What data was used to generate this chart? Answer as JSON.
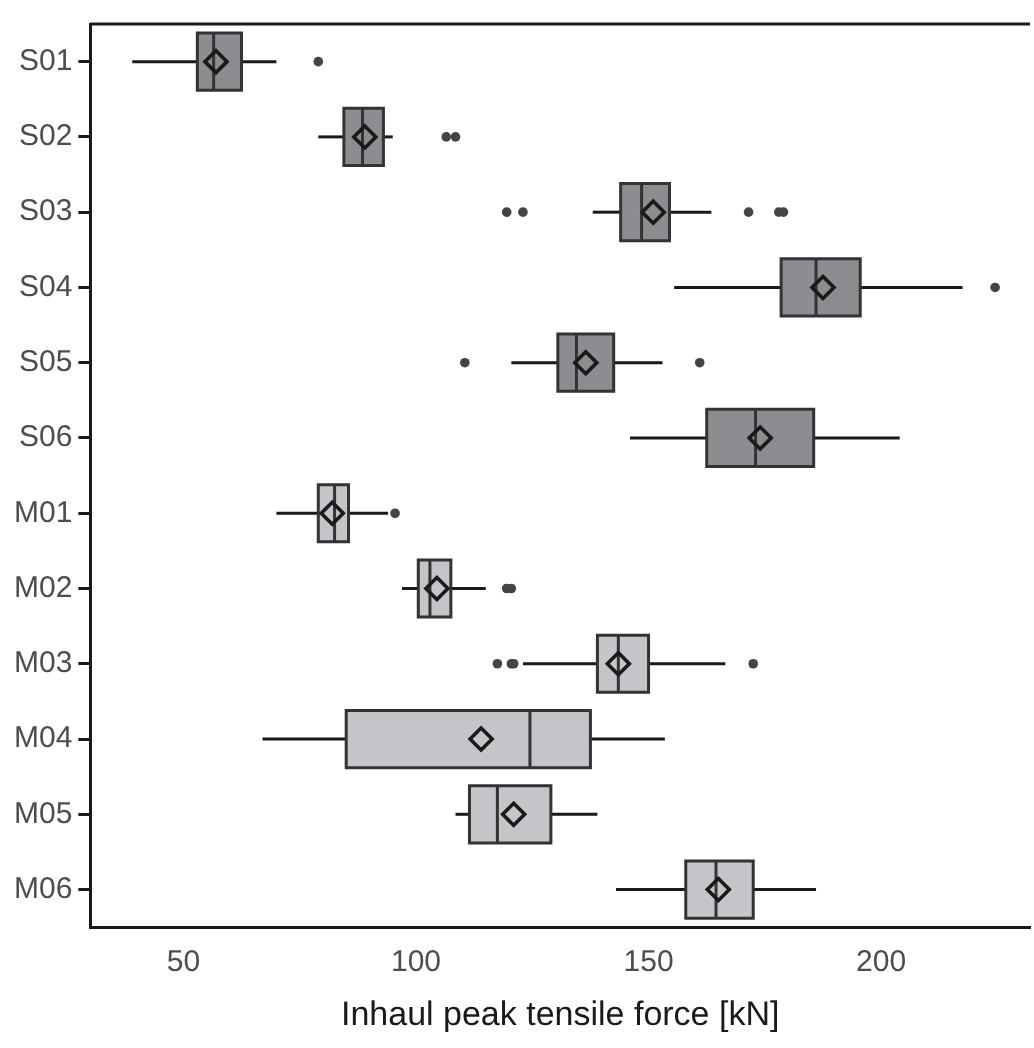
{
  "chart_data": {
    "type": "box",
    "orientation": "horizontal",
    "xlabel": "Inhaul peak tensile force [kN]",
    "categories": [
      "S01",
      "S02",
      "S03",
      "S04",
      "S05",
      "S06",
      "M01",
      "M02",
      "M03",
      "M04",
      "M05",
      "M06"
    ],
    "colors": [
      "#8c8d90",
      "#8c8d90",
      "#8c8d90",
      "#8c8d90",
      "#8c8d90",
      "#8c8d90",
      "#c4c5c8",
      "#c4c5c8",
      "#c4c5c8",
      "#c4c5c8",
      "#c4c5c8",
      "#c4c5c8"
    ],
    "boxes": [
      {
        "low": 39,
        "q1": 53,
        "median": 56.5,
        "q3": 62.5,
        "high": 70,
        "mean": 57,
        "outliers": [
          79
        ]
      },
      {
        "low": 79,
        "q1": 84.5,
        "median": 88.5,
        "q3": 93,
        "high": 95,
        "mean": 89,
        "outliers": [
          106.5,
          108.5
        ]
      },
      {
        "low": 138,
        "q1": 144,
        "median": 148.5,
        "q3": 154.5,
        "high": 163.5,
        "mean": 151,
        "outliers": [
          119.5,
          123,
          171.5,
          178,
          179
        ]
      },
      {
        "low": 155.5,
        "q1": 178.5,
        "median": 186,
        "q3": 195.5,
        "high": 217.5,
        "mean": 187.5,
        "outliers": [
          224.5
        ]
      },
      {
        "low": 120.5,
        "q1": 130.5,
        "median": 134.5,
        "q3": 142.5,
        "high": 153,
        "mean": 136.5,
        "outliers": [
          110.5,
          161
        ]
      },
      {
        "low": 146,
        "q1": 162.5,
        "median": 173,
        "q3": 185.5,
        "high": 204,
        "mean": 174
      },
      {
        "low": 70,
        "q1": 79,
        "median": 82.5,
        "q3": 85.5,
        "high": 94,
        "mean": 82,
        "outliers": [
          95.5
        ]
      },
      {
        "low": 97,
        "q1": 100.5,
        "median": 103,
        "q3": 107.5,
        "high": 115,
        "mean": 104.5,
        "outliers": [
          119.5,
          120.5
        ]
      },
      {
        "low": 123,
        "q1": 139,
        "median": 143.5,
        "q3": 150,
        "high": 166.5,
        "mean": 143.5,
        "outliers": [
          117.5,
          120.5,
          121,
          172.5
        ]
      },
      {
        "low": 67,
        "q1": 85,
        "median": 124.5,
        "q3": 137.5,
        "high": 153.5,
        "mean": 114
      },
      {
        "low": 108.5,
        "q1": 111.5,
        "median": 117.5,
        "q3": 129,
        "high": 139,
        "mean": 121
      },
      {
        "low": 143,
        "q1": 158,
        "median": 164.5,
        "q3": 172.5,
        "high": 186,
        "mean": 165
      }
    ],
    "xlim": [
      30,
      232
    ],
    "xticks": [
      50,
      100,
      150,
      200
    ]
  }
}
